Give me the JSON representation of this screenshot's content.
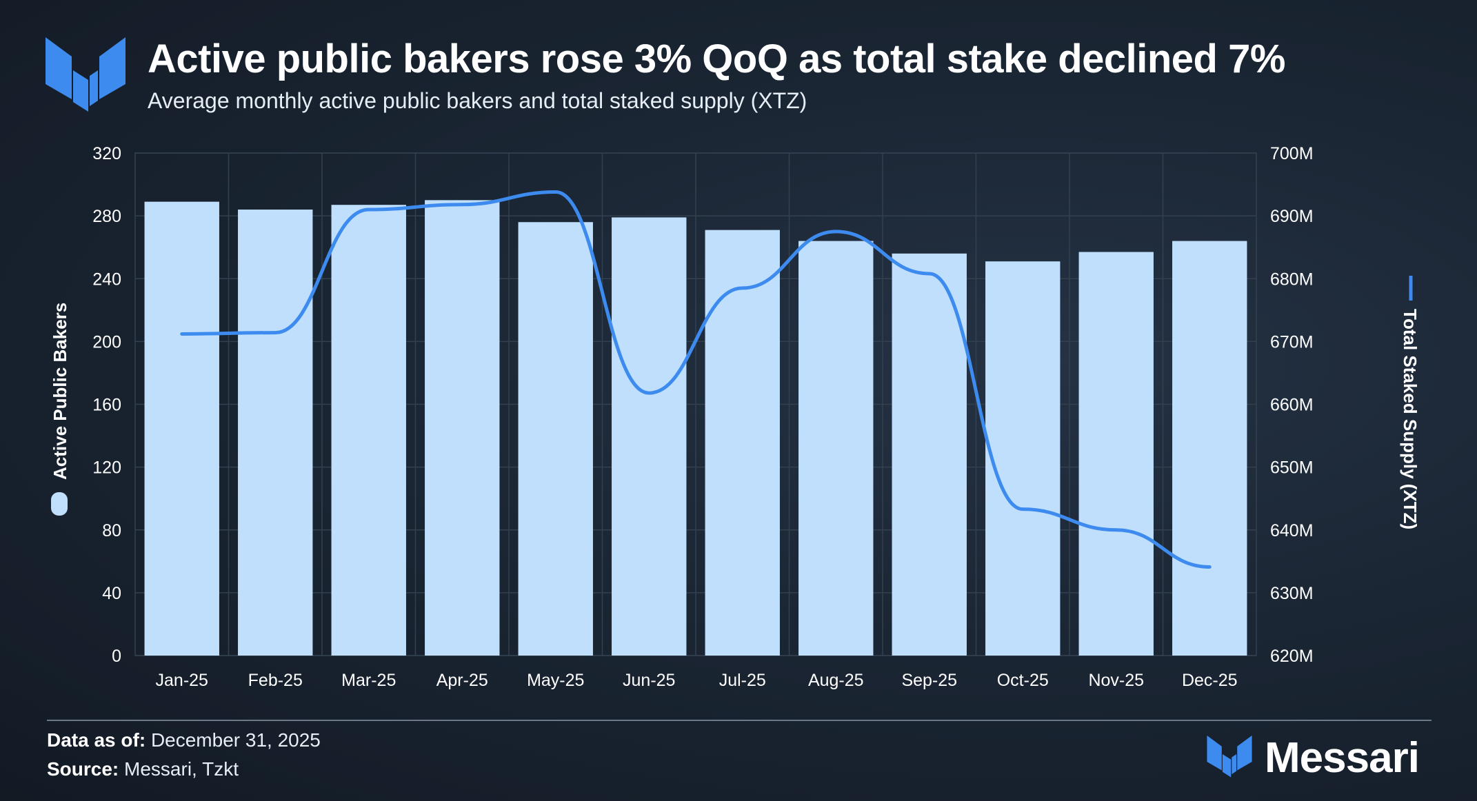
{
  "header": {
    "title": "Active public bakers rose 3% QoQ as total stake declined 7%",
    "subtitle": "Average monthly active public bakers and total staked supply (XTZ)"
  },
  "footer": {
    "data_as_of_label": "Data as of:",
    "data_as_of_value": "December 31, 2025",
    "source_label": "Source:",
    "source_value": "Messari, Tzkt",
    "brand": "Messari"
  },
  "colors": {
    "bar": "#bfdffd",
    "line": "#3d8bef",
    "grid": "#33404f",
    "axis_text": "#ffffff"
  },
  "icons": {
    "logo": "messari-logo-icon"
  },
  "chart_data": {
    "type": "bar",
    "categories": [
      "Jan-25",
      "Feb-25",
      "Mar-25",
      "Apr-25",
      "May-25",
      "Jun-25",
      "Jul-25",
      "Aug-25",
      "Sep-25",
      "Oct-25",
      "Nov-25",
      "Dec-25"
    ],
    "y_left": {
      "label": "Active Public Bakers",
      "ylim": [
        0,
        320
      ],
      "ticks": [
        0,
        40,
        80,
        120,
        160,
        200,
        240,
        280,
        320
      ],
      "tick_labels": [
        "0",
        "40",
        "80",
        "120",
        "160",
        "200",
        "240",
        "280",
        "320"
      ]
    },
    "y_right": {
      "label": "Total Staked Supply (XTZ)",
      "ylim": [
        620000000,
        700000000
      ],
      "ticks": [
        620000000,
        630000000,
        640000000,
        650000000,
        660000000,
        670000000,
        680000000,
        690000000,
        700000000
      ],
      "tick_labels": [
        "620M",
        "630M",
        "640M",
        "650M",
        "660M",
        "670M",
        "680M",
        "690M",
        "700M"
      ]
    },
    "series": [
      {
        "name": "Active Public Bakers",
        "type": "bar",
        "axis": "left",
        "values": [
          289,
          284,
          287,
          290,
          276,
          279,
          271,
          264,
          256,
          251,
          257,
          264
        ]
      },
      {
        "name": "Total Staked Supply (XTZ)",
        "type": "line",
        "axis": "right",
        "values": [
          671200000,
          671400000,
          691000000,
          691800000,
          693800000,
          661800000,
          678500000,
          687500000,
          680800000,
          643300000,
          640000000,
          634100000
        ]
      }
    ],
    "grid": true,
    "legend": "axis-labels"
  }
}
